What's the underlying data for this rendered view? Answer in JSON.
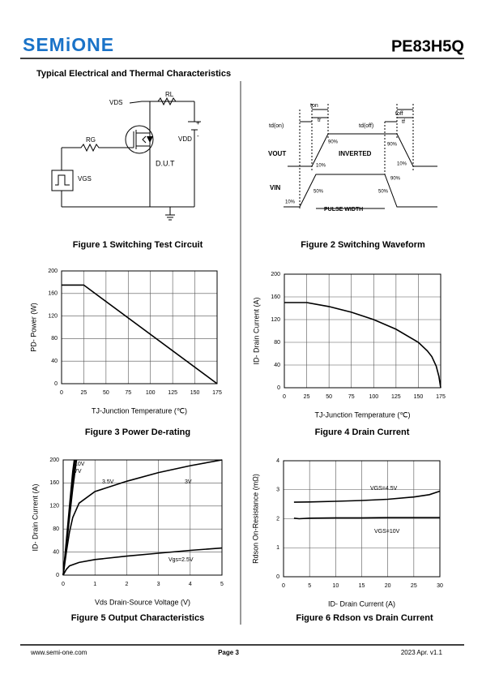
{
  "header": {
    "logo": "SEMiONE",
    "part": "PE83H5Q",
    "section": "Typical Electrical and Thermal Characteristics"
  },
  "figure1": {
    "caption": "Figure 1 Switching Test Circuit",
    "labels": [
      "VDS",
      "RL",
      "RG",
      "VGS",
      "VDD",
      "D.U.T",
      "+",
      "-"
    ]
  },
  "figure2": {
    "caption": "Figure 2 Switching Waveform",
    "labels": [
      "td(on)",
      "ton",
      "tr",
      "td(off)",
      "toff",
      "tf",
      "VOUT",
      "VIN",
      "INVERTED",
      "PULSE WIDTH",
      "90%",
      "10%",
      "90%",
      "10%",
      "50%",
      "50%",
      "90%",
      "10%"
    ]
  },
  "chart_data": [
    {
      "type": "line",
      "caption": "Figure 3 Power De-rating",
      "x_label": "TJ-Junction Temperature (℃)",
      "y_label": "PD- Power (W)",
      "xlim": [
        0,
        175
      ],
      "xticks": [
        0,
        25,
        50,
        75,
        100,
        125,
        150,
        175
      ],
      "ylim": [
        0,
        200
      ],
      "yticks": [
        0,
        40,
        80,
        120,
        160,
        200
      ],
      "grid": true,
      "series": [
        {
          "color": "#000000",
          "x": [
            0,
            25,
            175
          ],
          "values": [
            175,
            175,
            0
          ]
        }
      ]
    },
    {
      "type": "line",
      "caption": "Figure 4 Drain Current",
      "x_label": "TJ-Junction Temperature (℃)",
      "y_label": "ID- Drain Current (A)",
      "xlim": [
        0,
        175
      ],
      "xticks": [
        0,
        25,
        50,
        75,
        100,
        125,
        150,
        175
      ],
      "ylim": [
        0,
        200
      ],
      "yticks": [
        0,
        40,
        80,
        120,
        160,
        200
      ],
      "grid": true,
      "series": [
        {
          "color": "#000000",
          "x": [
            0,
            25,
            50,
            75,
            100,
            125,
            150,
            160,
            165,
            170,
            173,
            175
          ],
          "values": [
            150,
            150,
            143,
            133,
            120,
            103,
            80,
            65,
            55,
            38,
            20,
            0
          ]
        }
      ]
    },
    {
      "type": "line",
      "caption": "Figure 5 Output Characteristics",
      "x_label": "Vds Drain-Source Voltage (V)",
      "y_label": "ID- Drain Current (A)",
      "xlim": [
        0,
        5
      ],
      "xticks": [
        0,
        1,
        2,
        3,
        4,
        5
      ],
      "ylim": [
        0,
        200
      ],
      "yticks": [
        0,
        40,
        80,
        120,
        160,
        200
      ],
      "grid": true,
      "series": [
        {
          "name": "10V",
          "color": "#000000",
          "x": [
            0,
            0.1,
            0.2,
            0.3,
            0.35
          ],
          "values": [
            0,
            60,
            120,
            180,
            200
          ]
        },
        {
          "name": "7V",
          "color": "#000000",
          "x": [
            0,
            0.1,
            0.2,
            0.3,
            0.38
          ],
          "values": [
            0,
            55,
            110,
            165,
            200
          ]
        },
        {
          "name": "3.5V",
          "color": "#000000",
          "x": [
            0,
            0.1,
            0.2,
            0.3,
            0.42
          ],
          "values": [
            0,
            50,
            100,
            150,
            200
          ]
        },
        {
          "name": "3V",
          "color": "#000000",
          "x": [
            0,
            0.1,
            0.2,
            0.3,
            0.5,
            1,
            2,
            3,
            4,
            5
          ],
          "values": [
            0,
            40,
            75,
            100,
            125,
            145,
            163,
            178,
            190,
            200
          ]
        },
        {
          "name": "Vgs=2.5V",
          "color": "#000000",
          "x": [
            0,
            0.1,
            0.2,
            0.5,
            1,
            2,
            3,
            4,
            5
          ],
          "values": [
            0,
            10,
            16,
            22,
            27,
            33,
            38,
            43,
            47
          ]
        }
      ]
    },
    {
      "type": "line",
      "caption": "Figure 6 Rdson vs Drain Current",
      "x_label": "ID- Drain Current (A)",
      "y_label": "Rdson On-Resistance (mΩ)",
      "xlim": [
        0,
        30
      ],
      "xticks": [
        0,
        5,
        10,
        15,
        20,
        25,
        30
      ],
      "ylim": [
        0,
        4
      ],
      "yticks": [
        0,
        1,
        2,
        3,
        4
      ],
      "grid": true,
      "series": [
        {
          "name": "VGS=4.5V",
          "color": "#000000",
          "x": [
            2,
            5,
            10,
            15,
            20,
            25,
            28,
            30
          ],
          "values": [
            2.57,
            2.58,
            2.6,
            2.63,
            2.67,
            2.75,
            2.83,
            2.95
          ]
        },
        {
          "name": "VGS=10V",
          "color": "#000000",
          "x": [
            2,
            3,
            5,
            10,
            15,
            20,
            25,
            30
          ],
          "values": [
            2.02,
            2.0,
            2.02,
            2.03,
            2.03,
            2.04,
            2.04,
            2.04
          ]
        }
      ]
    }
  ],
  "footer": {
    "website": "www.semi-one.com",
    "page": "Page 3",
    "version": "2023 Apr. v1.1"
  }
}
